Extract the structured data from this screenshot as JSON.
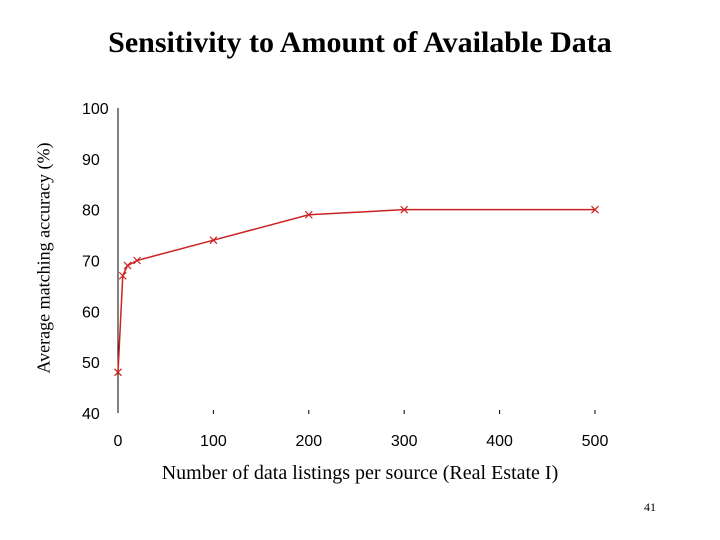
{
  "slide": {
    "title": "Sensitivity to Amount of Available Data",
    "page_number": "41"
  },
  "chart_data": {
    "type": "line",
    "title": "Sensitivity to Amount of Available Data",
    "xlabel": "Number of data listings per source (Real Estate I)",
    "ylabel": "Average matching accuracy (%)",
    "xlim": [
      0,
      500
    ],
    "ylim": [
      40,
      100
    ],
    "x_ticks": [
      0,
      100,
      200,
      300,
      400,
      500
    ],
    "y_ticks": [
      40,
      50,
      60,
      70,
      80,
      90,
      100
    ],
    "grid": false,
    "series": [
      {
        "color": "#cc2222",
        "marker": "x",
        "points": [
          {
            "x": 0,
            "y": 48
          },
          {
            "x": 5,
            "y": 67
          },
          {
            "x": 10,
            "y": 69
          },
          {
            "x": 20,
            "y": 70
          },
          {
            "x": 100,
            "y": 74
          },
          {
            "x": 200,
            "y": 79
          },
          {
            "x": 300,
            "y": 80
          },
          {
            "x": 500,
            "y": 80
          }
        ]
      }
    ]
  }
}
